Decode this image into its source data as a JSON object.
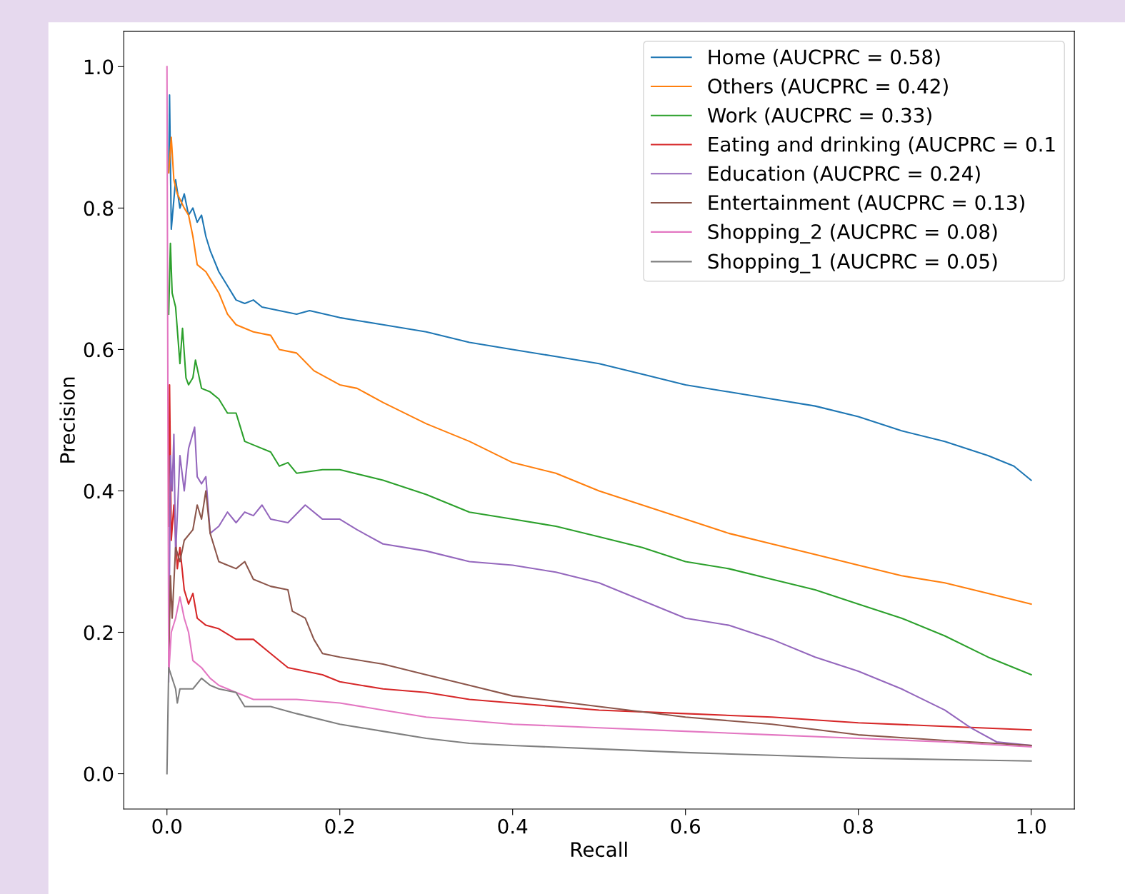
{
  "chart_data": {
    "type": "line",
    "xlabel": "Recall",
    "ylabel": "Precision",
    "xlim": [
      -0.05,
      1.05
    ],
    "ylim": [
      -0.05,
      1.05
    ],
    "xticks": [
      {
        "value": 0,
        "label": "0.0"
      },
      0.2,
      0.4,
      0.6,
      0.8,
      {
        "value": 1,
        "label": "1.0"
      }
    ],
    "yticks": [
      {
        "value": 0,
        "label": "0.0"
      },
      0.2,
      0.4,
      0.6,
      0.8,
      {
        "value": 1,
        "label": "1.0"
      }
    ],
    "grid": false,
    "legend": "top right",
    "marker": "none",
    "line_style": "solid",
    "series": [
      {
        "name": "Home (AUCPRC = 0.58)",
        "color": "#1f77b4",
        "x": [
          0.002,
          0.003,
          0.005,
          0.01,
          0.015,
          0.02,
          0.025,
          0.03,
          0.035,
          0.04,
          0.045,
          0.05,
          0.06,
          0.07,
          0.08,
          0.09,
          0.1,
          0.11,
          0.13,
          0.15,
          0.165,
          0.2,
          0.25,
          0.3,
          0.35,
          0.4,
          0.45,
          0.5,
          0.55,
          0.6,
          0.65,
          0.7,
          0.75,
          0.8,
          0.85,
          0.9,
          0.95,
          0.98,
          1.0
        ],
        "values": [
          0.85,
          0.96,
          0.77,
          0.84,
          0.8,
          0.82,
          0.79,
          0.8,
          0.78,
          0.79,
          0.76,
          0.74,
          0.71,
          0.69,
          0.67,
          0.665,
          0.67,
          0.66,
          0.655,
          0.65,
          0.655,
          0.645,
          0.635,
          0.625,
          0.61,
          0.6,
          0.59,
          0.58,
          0.565,
          0.55,
          0.54,
          0.53,
          0.52,
          0.505,
          0.485,
          0.47,
          0.45,
          0.435,
          0.415
        ]
      },
      {
        "name": "Others (AUCPRC = 0.42)",
        "color": "#ff7f0e",
        "x": [
          0.002,
          0.005,
          0.008,
          0.012,
          0.02,
          0.025,
          0.03,
          0.035,
          0.045,
          0.05,
          0.06,
          0.07,
          0.08,
          0.1,
          0.12,
          0.13,
          0.15,
          0.17,
          0.2,
          0.22,
          0.25,
          0.3,
          0.35,
          0.4,
          0.45,
          0.5,
          0.55,
          0.6,
          0.65,
          0.7,
          0.75,
          0.8,
          0.85,
          0.9,
          0.95,
          1.0
        ],
        "values": [
          0.85,
          0.9,
          0.84,
          0.82,
          0.8,
          0.79,
          0.76,
          0.72,
          0.71,
          0.7,
          0.68,
          0.65,
          0.635,
          0.625,
          0.62,
          0.6,
          0.595,
          0.57,
          0.55,
          0.545,
          0.525,
          0.495,
          0.47,
          0.44,
          0.425,
          0.4,
          0.38,
          0.36,
          0.34,
          0.325,
          0.31,
          0.295,
          0.28,
          0.27,
          0.255,
          0.24
        ]
      },
      {
        "name": "Work (AUCPRC = 0.33)",
        "color": "#2ca02c",
        "x": [
          0.002,
          0.004,
          0.006,
          0.01,
          0.015,
          0.018,
          0.022,
          0.025,
          0.03,
          0.033,
          0.04,
          0.05,
          0.06,
          0.07,
          0.08,
          0.09,
          0.1,
          0.12,
          0.13,
          0.14,
          0.15,
          0.18,
          0.2,
          0.25,
          0.3,
          0.35,
          0.4,
          0.45,
          0.5,
          0.55,
          0.6,
          0.65,
          0.7,
          0.75,
          0.8,
          0.85,
          0.9,
          0.95,
          1.0
        ],
        "values": [
          0.65,
          0.75,
          0.68,
          0.66,
          0.58,
          0.63,
          0.56,
          0.55,
          0.56,
          0.585,
          0.545,
          0.54,
          0.53,
          0.51,
          0.51,
          0.47,
          0.465,
          0.455,
          0.435,
          0.44,
          0.425,
          0.43,
          0.43,
          0.415,
          0.395,
          0.37,
          0.36,
          0.35,
          0.335,
          0.32,
          0.3,
          0.29,
          0.275,
          0.26,
          0.24,
          0.22,
          0.195,
          0.165,
          0.14
        ]
      },
      {
        "name": "Eating and drinking (AUCPRC = 0.1",
        "color": "#d62728",
        "x": [
          0.002,
          0.003,
          0.005,
          0.008,
          0.012,
          0.015,
          0.02,
          0.025,
          0.03,
          0.035,
          0.045,
          0.06,
          0.08,
          0.1,
          0.12,
          0.14,
          0.18,
          0.2,
          0.25,
          0.3,
          0.35,
          0.4,
          0.5,
          0.6,
          0.7,
          0.8,
          0.9,
          1.0
        ],
        "values": [
          0.35,
          0.55,
          0.33,
          0.38,
          0.29,
          0.32,
          0.26,
          0.24,
          0.255,
          0.22,
          0.21,
          0.205,
          0.19,
          0.19,
          0.17,
          0.15,
          0.14,
          0.13,
          0.12,
          0.115,
          0.105,
          0.1,
          0.09,
          0.085,
          0.08,
          0.072,
          0.067,
          0.062
        ]
      },
      {
        "name": "Education (AUCPRC = 0.24)",
        "color": "#9467bd",
        "x": [
          0.002,
          0.004,
          0.006,
          0.008,
          0.01,
          0.015,
          0.02,
          0.025,
          0.032,
          0.035,
          0.04,
          0.045,
          0.05,
          0.06,
          0.07,
          0.08,
          0.09,
          0.1,
          0.11,
          0.12,
          0.14,
          0.16,
          0.18,
          0.2,
          0.22,
          0.25,
          0.3,
          0.35,
          0.4,
          0.45,
          0.5,
          0.55,
          0.6,
          0.65,
          0.7,
          0.75,
          0.8,
          0.85,
          0.9,
          0.93,
          0.96,
          1.0
        ],
        "values": [
          0.13,
          0.45,
          0.4,
          0.48,
          0.31,
          0.45,
          0.4,
          0.46,
          0.49,
          0.42,
          0.41,
          0.42,
          0.34,
          0.35,
          0.37,
          0.355,
          0.37,
          0.365,
          0.38,
          0.36,
          0.355,
          0.38,
          0.36,
          0.36,
          0.345,
          0.325,
          0.315,
          0.3,
          0.295,
          0.285,
          0.27,
          0.245,
          0.22,
          0.21,
          0.19,
          0.165,
          0.145,
          0.12,
          0.09,
          0.065,
          0.045,
          0.04
        ]
      },
      {
        "name": "Entertainment (AUCPRC = 0.13)",
        "color": "#8c564b",
        "x": [
          0.002,
          0.004,
          0.006,
          0.01,
          0.015,
          0.02,
          0.03,
          0.035,
          0.04,
          0.045,
          0.05,
          0.06,
          0.07,
          0.08,
          0.09,
          0.1,
          0.12,
          0.14,
          0.145,
          0.16,
          0.17,
          0.18,
          0.2,
          0.25,
          0.3,
          0.35,
          0.4,
          0.5,
          0.6,
          0.7,
          0.8,
          0.9,
          1.0
        ],
        "values": [
          0.15,
          0.28,
          0.22,
          0.32,
          0.3,
          0.33,
          0.345,
          0.38,
          0.36,
          0.4,
          0.34,
          0.3,
          0.295,
          0.29,
          0.3,
          0.275,
          0.265,
          0.26,
          0.23,
          0.22,
          0.19,
          0.17,
          0.165,
          0.155,
          0.14,
          0.125,
          0.11,
          0.095,
          0.08,
          0.07,
          0.055,
          0.047,
          0.04
        ]
      },
      {
        "name": "Shopping_2 (AUCPRC = 0.08)",
        "color": "#e377c2",
        "x": [
          0.0,
          0.002,
          0.005,
          0.01,
          0.015,
          0.02,
          0.025,
          0.03,
          0.04,
          0.05,
          0.06,
          0.08,
          0.1,
          0.15,
          0.2,
          0.25,
          0.3,
          0.35,
          0.4,
          0.5,
          0.6,
          0.7,
          0.8,
          0.9,
          1.0
        ],
        "values": [
          1.0,
          0.14,
          0.2,
          0.22,
          0.25,
          0.22,
          0.2,
          0.16,
          0.15,
          0.135,
          0.125,
          0.115,
          0.105,
          0.105,
          0.1,
          0.09,
          0.08,
          0.075,
          0.07,
          0.065,
          0.06,
          0.055,
          0.05,
          0.045,
          0.038
        ]
      },
      {
        "name": "Shopping_1 (AUCPRC = 0.05)",
        "color": "#7f7f7f",
        "x": [
          0.0,
          0.002,
          0.01,
          0.012,
          0.015,
          0.02,
          0.03,
          0.04,
          0.05,
          0.06,
          0.08,
          0.09,
          0.12,
          0.15,
          0.2,
          0.25,
          0.3,
          0.35,
          0.4,
          0.5,
          0.6,
          0.7,
          0.8,
          0.9,
          1.0
        ],
        "values": [
          0.0,
          0.15,
          0.12,
          0.1,
          0.12,
          0.12,
          0.12,
          0.135,
          0.125,
          0.12,
          0.115,
          0.095,
          0.095,
          0.085,
          0.07,
          0.06,
          0.05,
          0.043,
          0.04,
          0.035,
          0.03,
          0.026,
          0.022,
          0.02,
          0.018
        ]
      }
    ]
  }
}
